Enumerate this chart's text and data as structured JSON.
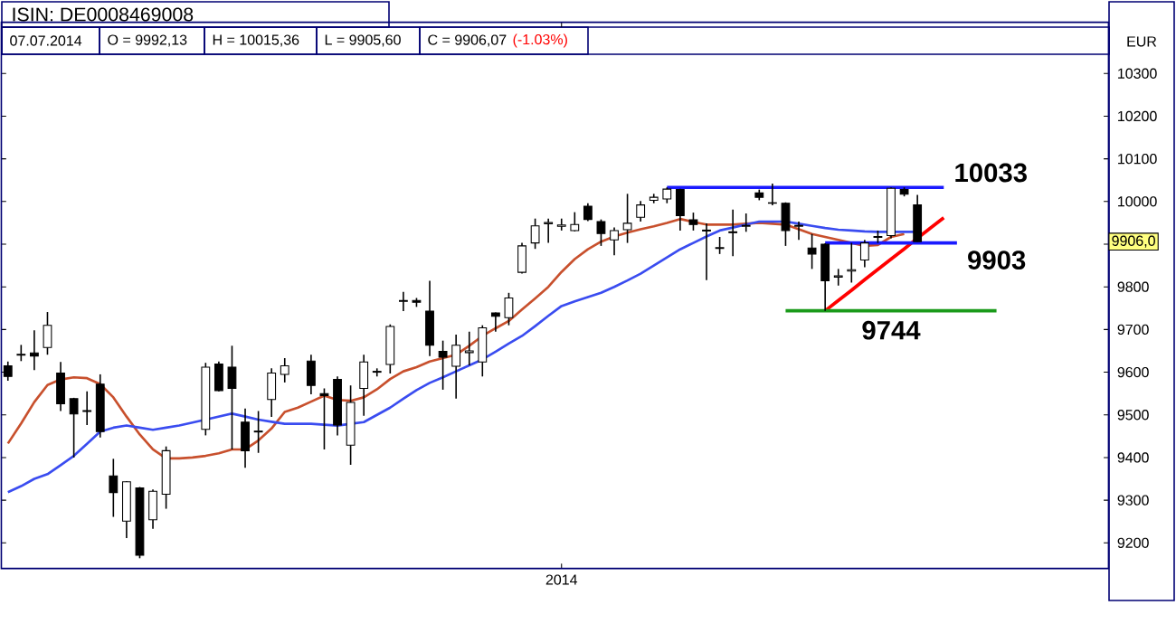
{
  "chart_data": {
    "type": "candlestick",
    "title": "ISIN: DE0008469008",
    "subtitle": "07.07.2014",
    "ylabel": "EUR",
    "annotations": [
      "O = 9992,13",
      "H = 10015,36",
      "L = 9905,60",
      "C = 9906,07",
      "(-1.03%)",
      {
        "text": "9906,0",
        "y": 9906
      }
    ],
    "categories": [
      null,
      null,
      null,
      null,
      null,
      null,
      null,
      null,
      null,
      null,
      null,
      null,
      null,
      null,
      null,
      null,
      null,
      null,
      null,
      null,
      null,
      null,
      null,
      null,
      null,
      null,
      null,
      null,
      null,
      null,
      null,
      null,
      null,
      null,
      null,
      null,
      null,
      null,
      null,
      null,
      null,
      null,
      "2014",
      null,
      null,
      null,
      null,
      null,
      null,
      null,
      null,
      null,
      null,
      null,
      null,
      null,
      null,
      null,
      null,
      null,
      null,
      null,
      null,
      null,
      null,
      null,
      null,
      null,
      null,
      null,
      null,
      null,
      null,
      null,
      null,
      null,
      null,
      null,
      null,
      null,
      null,
      null,
      null,
      null
    ],
    "ohlc": [
      [
        9615,
        9625,
        9580,
        9590
      ],
      [
        9640,
        9664,
        9626,
        9642
      ],
      [
        9645,
        9698,
        9605,
        9638
      ],
      [
        9658,
        9741,
        9641,
        9710
      ],
      [
        9598,
        9624,
        9509,
        9526
      ],
      [
        9538,
        9540,
        9400,
        9502
      ],
      [
        9508,
        9555,
        9476,
        9510
      ],
      [
        9572,
        9595,
        9447,
        9461
      ],
      [
        9357,
        9397,
        9261,
        9318
      ],
      [
        9251,
        9345,
        9211,
        9343
      ],
      [
        9329,
        9331,
        9164,
        9171
      ],
      [
        9254,
        9325,
        9233,
        9321
      ],
      [
        9314,
        9426,
        9280,
        9416
      ],
      null,
      null,
      [
        9466,
        9622,
        9452,
        9612
      ],
      [
        9619,
        9625,
        9555,
        9557
      ],
      [
        9612,
        9662,
        9419,
        9562
      ],
      [
        9483,
        9515,
        9376,
        9416
      ],
      [
        9460,
        9509,
        9411,
        9462
      ],
      [
        9536,
        9609,
        9495,
        9598
      ],
      [
        9595,
        9633,
        9576,
        9615
      ],
      null,
      [
        9626,
        9641,
        9548,
        9569
      ],
      [
        9550,
        9562,
        9419,
        9545
      ],
      [
        9583,
        9590,
        9452,
        9476
      ],
      [
        9429,
        9569,
        9383,
        9529
      ],
      [
        9562,
        9641,
        9498,
        9624
      ],
      [
        9600,
        9609,
        9590,
        9602
      ],
      [
        9618,
        9712,
        9597,
        9707
      ],
      [
        9766,
        9788,
        9743,
        9768
      ],
      [
        9768,
        9774,
        9753,
        9764
      ],
      [
        9743,
        9814,
        9638,
        9663
      ],
      [
        9649,
        9674,
        9559,
        9635
      ],
      [
        9614,
        9688,
        9538,
        9663
      ],
      [
        9646,
        9695,
        9616,
        9650
      ],
      [
        9624,
        9710,
        9590,
        9704
      ],
      [
        9739,
        9740,
        9695,
        9731
      ],
      [
        9728,
        9786,
        9710,
        9774
      ],
      [
        9834,
        9903,
        9831,
        9896
      ],
      [
        9903,
        9960,
        9889,
        9943
      ],
      [
        9948,
        9960,
        9903,
        9951
      ],
      [
        9942,
        9960,
        9932,
        9945
      ],
      [
        9932,
        9975,
        9930,
        9946
      ],
      [
        9989,
        9996,
        9954,
        9958
      ],
      [
        9953,
        9958,
        9896,
        9925
      ],
      [
        9910,
        9939,
        9874,
        9932
      ],
      [
        9934,
        10018,
        9903,
        9949
      ],
      [
        9963,
        10001,
        9953,
        9992
      ],
      [
        10003,
        10018,
        9996,
        10010
      ],
      [
        10006,
        10033,
        9996,
        10029
      ],
      [
        10028,
        10030,
        9932,
        9967
      ],
      [
        9957,
        9974,
        9932,
        9946
      ],
      [
        9933,
        9949,
        9816,
        9931
      ],
      [
        9890,
        9917,
        9877,
        9892
      ],
      [
        9929,
        9981,
        9872,
        9927
      ],
      [
        9942,
        9972,
        9929,
        9944
      ],
      [
        10020,
        10028,
        10003,
        10010
      ],
      [
        9997,
        10042,
        9991,
        9996
      ],
      [
        9996,
        9998,
        9896,
        9932
      ],
      [
        9942,
        9953,
        9910,
        9944
      ],
      [
        9891,
        9924,
        9842,
        9877
      ],
      [
        9900,
        9902,
        9744,
        9814
      ],
      [
        9823,
        9842,
        9803,
        9826
      ],
      [
        9837,
        9903,
        9810,
        9840
      ],
      [
        9863,
        9910,
        9846,
        9903
      ],
      [
        9916,
        9932,
        9903,
        9918
      ],
      [
        9920,
        10033,
        9914,
        10031
      ],
      [
        10028,
        10033,
        10012,
        10017
      ],
      [
        9992.13,
        10015.36,
        9905.6,
        9906.07
      ],
      null,
      null,
      null,
      null,
      null,
      null,
      null,
      null,
      null,
      null,
      null,
      null,
      null,
      null
    ],
    "series": [
      {
        "type": "line",
        "color": "#c8502d",
        "values": [
          9433,
          9480,
          9530,
          9570,
          9583,
          9588,
          9586,
          9572,
          9541,
          9496,
          9454,
          9419,
          9398,
          9398,
          9400,
          9404,
          9410,
          9419,
          9419,
          9440,
          9468,
          9507,
          9517,
          9531,
          9545,
          9535,
          9533,
          9541,
          9560,
          9584,
          9602,
          9612,
          9625,
          9633,
          9641,
          9662,
          9685,
          9703,
          9720,
          9747,
          9773,
          9800,
          9835,
          9865,
          9888,
          9906,
          9918,
          9927,
          9935,
          9942,
          9950,
          9959,
          9952,
          9946,
          9946,
          9946,
          9948,
          9950,
          9948,
          9946,
          9935,
          9924,
          9917,
          9910,
          9903,
          9896,
          9898,
          9917,
          9924,
          null,
          null,
          null,
          null,
          null,
          null,
          null,
          null,
          null,
          null,
          null,
          null,
          null,
          null,
          null
        ]
      },
      {
        "type": "line",
        "color": "#3a4cf0",
        "values": [
          9319,
          9333,
          9350,
          9361,
          9382,
          9404,
          9432,
          9461,
          9470,
          9475,
          9470,
          9465,
          9470,
          9475,
          9482,
          9489,
          9496,
          9503,
          9496,
          9489,
          9484,
          9479,
          9479,
          9479,
          9477,
          9475,
          9479,
          9483,
          9500,
          9517,
          9538,
          9558,
          9575,
          9588,
          9602,
          9616,
          9630,
          9648,
          9667,
          9685,
          9708,
          9732,
          9755,
          9766,
          9776,
          9786,
          9800,
          9815,
          9831,
          9850,
          9869,
          9888,
          9903,
          9918,
          9932,
          9939,
          9946,
          9953,
          9953,
          9953,
          9948,
          9943,
          9938,
          9934,
          9932,
          9930,
          9929,
          9929,
          9929,
          9929,
          null,
          null,
          null,
          null,
          null,
          null,
          null,
          null,
          null,
          null,
          null,
          null,
          null,
          null
        ]
      },
      {
        "type": "line",
        "color": "#ff0000",
        "values": [
          null,
          null,
          null,
          null,
          null,
          null,
          null,
          null,
          null,
          null,
          null,
          null,
          null,
          null,
          null,
          null,
          null,
          null,
          null,
          null,
          null,
          null,
          null,
          null,
          null,
          null,
          null,
          null,
          null,
          null,
          null,
          null,
          null,
          null,
          null,
          null,
          null,
          null,
          null,
          null,
          null,
          null,
          null,
          null,
          null,
          null,
          null,
          null,
          null,
          null,
          null,
          null,
          null,
          null,
          null,
          null,
          null,
          null,
          null,
          null,
          null,
          null,
          9744,
          9768,
          9792,
          9817,
          9841,
          9865,
          9889,
          9914,
          9938,
          9962,
          null,
          null,
          null,
          null,
          null,
          null,
          null,
          null,
          null,
          null,
          null,
          null
        ]
      },
      {
        "type": "line",
        "name": "10033",
        "color": "#1a1aff",
        "values": [
          null,
          null,
          null,
          null,
          null,
          null,
          null,
          null,
          null,
          null,
          null,
          null,
          null,
          null,
          null,
          null,
          null,
          null,
          null,
          null,
          null,
          null,
          null,
          null,
          null,
          null,
          null,
          null,
          null,
          null,
          null,
          null,
          null,
          null,
          null,
          null,
          null,
          null,
          null,
          null,
          null,
          null,
          null,
          null,
          null,
          null,
          null,
          null,
          null,
          null,
          10033,
          10033,
          10033,
          10033,
          10033,
          10033,
          10033,
          10033,
          10033,
          10033,
          10033,
          10033,
          10033,
          10033,
          10033,
          10033,
          10033,
          10033,
          10033,
          10033,
          10033,
          10033,
          null,
          null,
          null,
          null,
          null,
          null,
          null,
          null,
          null,
          null,
          null,
          null
        ]
      },
      {
        "type": "line",
        "name": "9903",
        "color": "#1a1aff",
        "values": [
          null,
          null,
          null,
          null,
          null,
          null,
          null,
          null,
          null,
          null,
          null,
          null,
          null,
          null,
          null,
          null,
          null,
          null,
          null,
          null,
          null,
          null,
          null,
          null,
          null,
          null,
          null,
          null,
          null,
          null,
          null,
          null,
          null,
          null,
          null,
          null,
          null,
          null,
          null,
          null,
          null,
          null,
          null,
          null,
          null,
          null,
          null,
          null,
          null,
          null,
          null,
          null,
          null,
          null,
          null,
          null,
          null,
          null,
          null,
          null,
          null,
          null,
          9903,
          9903,
          9903,
          9903,
          9903,
          9903,
          9903,
          9903,
          9903,
          9903,
          9903,
          null,
          null,
          null,
          null,
          null,
          null,
          null,
          null,
          null,
          null,
          null
        ]
      },
      {
        "type": "line",
        "name": "9744",
        "color": "#1a9a1a",
        "values": [
          null,
          null,
          null,
          null,
          null,
          null,
          null,
          null,
          null,
          null,
          null,
          null,
          null,
          null,
          null,
          null,
          null,
          null,
          null,
          null,
          null,
          null,
          null,
          null,
          null,
          null,
          null,
          null,
          null,
          null,
          null,
          null,
          null,
          null,
          null,
          null,
          null,
          null,
          null,
          null,
          null,
          null,
          null,
          null,
          null,
          null,
          null,
          null,
          null,
          null,
          null,
          null,
          null,
          null,
          null,
          null,
          null,
          null,
          null,
          9744,
          9744,
          9744,
          9744,
          9744,
          9744,
          9744,
          9744,
          9744,
          9744,
          9744,
          9744,
          9744,
          9744,
          9744,
          9744,
          9744,
          null,
          null,
          null,
          null,
          null,
          null,
          null,
          null
        ]
      }
    ],
    "ylim": [
      9140,
      10420
    ],
    "yticks": [
      9200,
      9300,
      9400,
      9500,
      9600,
      9700,
      9800,
      {
        "value": 9900,
        "label": null
      },
      10000,
      10100,
      10200,
      10300
    ]
  }
}
